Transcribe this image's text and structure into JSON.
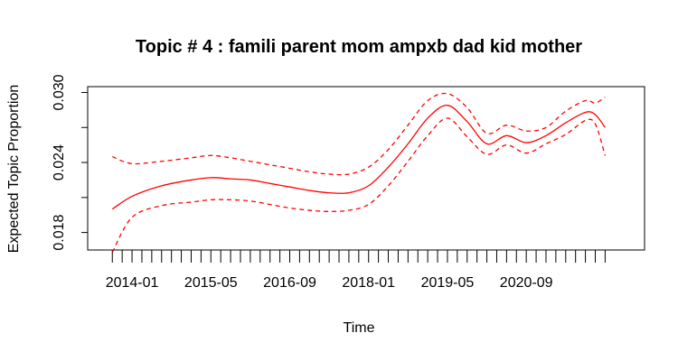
{
  "chart_data": {
    "type": "line",
    "title": "Topic # 4 :  famili parent mom ampxb dad kid mother",
    "xlabel": "Time",
    "ylabel": "Expected Topic Proportion",
    "x_ticks": [
      "2014-01",
      "2015-05",
      "2016-09",
      "2018-01",
      "2019-05",
      "2020-09"
    ],
    "y_ticks": [
      "0.018",
      "0.024",
      "0.030"
    ],
    "xlim": [
      "2013-04",
      "2022-09"
    ],
    "ylim": [
      0.0165,
      0.0305
    ],
    "x": [
      "2013-09",
      "2014-01",
      "2014-07",
      "2015-01",
      "2015-05",
      "2015-09",
      "2016-01",
      "2016-05",
      "2016-09",
      "2017-01",
      "2017-05",
      "2017-09",
      "2018-01",
      "2018-05",
      "2018-09",
      "2019-01",
      "2019-05",
      "2019-09",
      "2020-01",
      "2020-05",
      "2020-09",
      "2021-01",
      "2021-05",
      "2021-09",
      "2021-11",
      "2022-01"
    ],
    "series": [
      {
        "values": [
          0.02,
          0.0211,
          0.022,
          0.0225,
          0.0227,
          0.0226,
          0.0225,
          0.0222,
          0.0219,
          0.0216,
          0.0214,
          0.0214,
          0.022,
          0.0236,
          0.0256,
          0.0278,
          0.0289,
          0.0275,
          0.0256,
          0.0263,
          0.0257,
          0.0263,
          0.0274,
          0.0283,
          0.0281,
          0.027
        ],
        "color": "#ff0000",
        "style": "solid"
      },
      {
        "values": [
          0.0245,
          0.0239,
          0.0241,
          0.0244,
          0.0246,
          0.0244,
          0.0241,
          0.0238,
          0.0235,
          0.0232,
          0.023,
          0.023,
          0.0236,
          0.0251,
          0.0272,
          0.0293,
          0.0299,
          0.0287,
          0.0265,
          0.0272,
          0.0267,
          0.027,
          0.0284,
          0.0293,
          0.0291,
          0.0296
        ],
        "color": "#ff0000",
        "style": "dashed"
      },
      {
        "values": [
          0.0163,
          0.0193,
          0.0203,
          0.0206,
          0.0208,
          0.0208,
          0.0207,
          0.0204,
          0.0201,
          0.0199,
          0.0198,
          0.0199,
          0.0204,
          0.022,
          0.0241,
          0.0263,
          0.0278,
          0.0262,
          0.0247,
          0.0255,
          0.0248,
          0.0256,
          0.0264,
          0.0276,
          0.0273,
          0.0246
        ],
        "color": "#ff0000",
        "style": "dashed"
      }
    ]
  }
}
